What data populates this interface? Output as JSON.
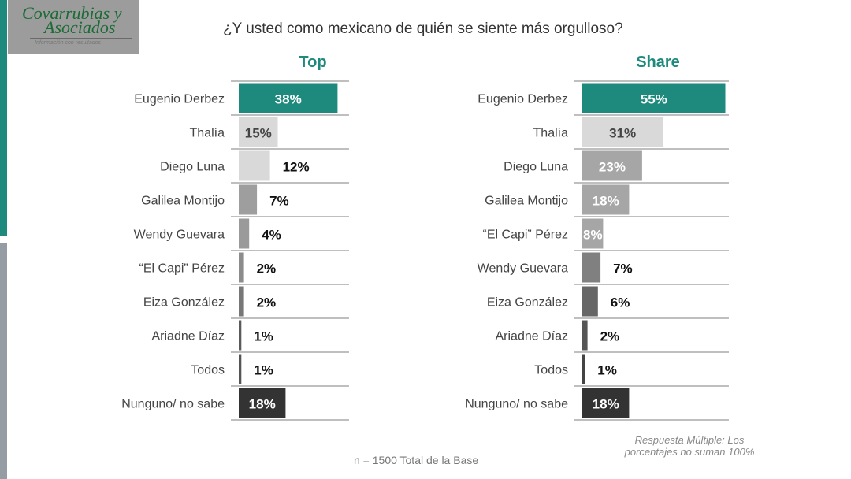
{
  "logo": {
    "line1": "Covarrubias y",
    "line2": "Asociados",
    "tagline": "Información con resultados"
  },
  "title": "¿Y usted como mexicano de quién se siente más orgulloso?",
  "footnote_base": "n = 1500 Total de la Base",
  "footnote_multiple": [
    "Respuesta Múltiple: Los",
    "porcentajes no suman 100%"
  ],
  "colors": {
    "accent": "#1d8a7d"
  },
  "chart_data": [
    {
      "type": "bar",
      "orientation": "horizontal",
      "title": "Top",
      "categories": [
        "Eugenio Derbez",
        "Thalía",
        "Diego Luna",
        "Galilea Montijo",
        "Wendy Guevara",
        "“El Capi” Pérez",
        "Eiza González",
        "Ariadne Díaz",
        "Todos",
        "Nunguno/ no sabe"
      ],
      "values": [
        38,
        15,
        12,
        7,
        4,
        2,
        2,
        1,
        1,
        18
      ],
      "labels": [
        "38%",
        "15%",
        "12%",
        "7%",
        "4%",
        "2%",
        "2%",
        "1%",
        "1%",
        "18%"
      ],
      "colors": [
        "#1d8a7d",
        "#d9d9d9",
        "#d9d9d9",
        "#9e9e9e",
        "#9a9a9a",
        "#8c8c8c",
        "#777777",
        "#5a5a5a",
        "#555555",
        "#333333"
      ],
      "unit": "%"
    },
    {
      "type": "bar",
      "orientation": "horizontal",
      "title": "Share",
      "categories": [
        "Eugenio Derbez",
        "Thalía",
        "Diego Luna",
        "Galilea Montijo",
        "“El Capi” Pérez",
        "Wendy Guevara",
        "Eiza González",
        "Ariadne Díaz",
        "Todos",
        "Nunguno/ no sabe"
      ],
      "values": [
        55,
        31,
        23,
        18,
        8,
        7,
        6,
        2,
        1,
        18
      ],
      "labels": [
        "55%",
        "31%",
        "23%",
        "18%",
        "8%",
        "7%",
        "6%",
        "2%",
        "1%",
        "18%"
      ],
      "colors": [
        "#1d8a7d",
        "#d9d9d9",
        "#a6a6a6",
        "#a6a6a6",
        "#a6a6a6",
        "#808080",
        "#666666",
        "#555555",
        "#444444",
        "#333333"
      ],
      "unit": "%"
    }
  ]
}
